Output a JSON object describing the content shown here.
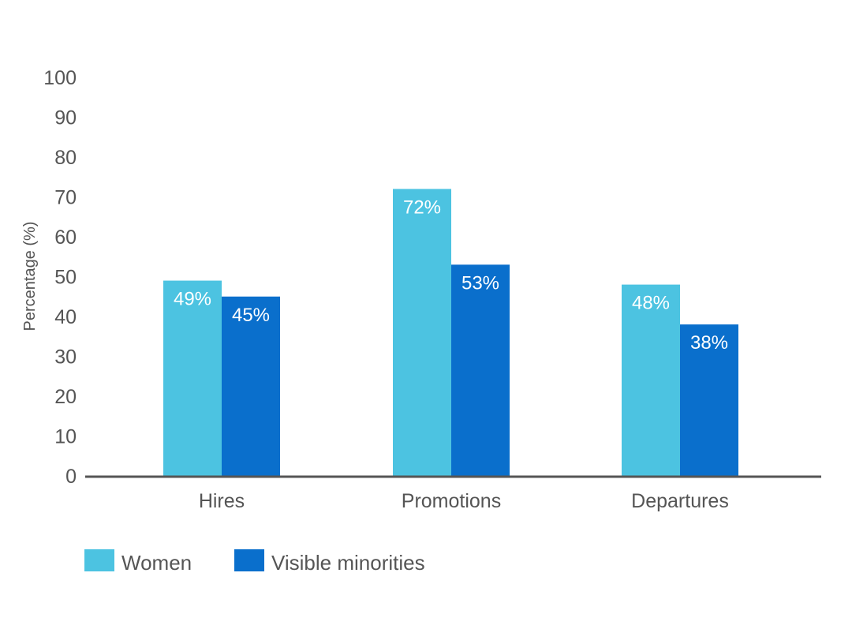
{
  "chart_data": {
    "type": "bar",
    "categories": [
      "Hires",
      "Promotions",
      "Departures"
    ],
    "series": [
      {
        "name": "Women",
        "values": [
          49,
          72,
          48
        ],
        "labels": [
          "49%",
          "72%",
          "48%"
        ],
        "color": "#4cc3e1"
      },
      {
        "name": "Visible minorities",
        "values": [
          45,
          53,
          38
        ],
        "labels": [
          "45%",
          "53%",
          "38%"
        ],
        "color": "#0a6fcc"
      }
    ],
    "title": "",
    "xlabel": "",
    "ylabel": "Percentage (%)",
    "ylim": [
      0,
      100
    ],
    "yticks": [
      "0",
      "10",
      "20",
      "30",
      "40",
      "50",
      "60",
      "70",
      "80",
      "90",
      "100"
    ],
    "grid": false,
    "legend": "bottom-left",
    "axis_color": "#555555",
    "text_color": "#555555"
  }
}
